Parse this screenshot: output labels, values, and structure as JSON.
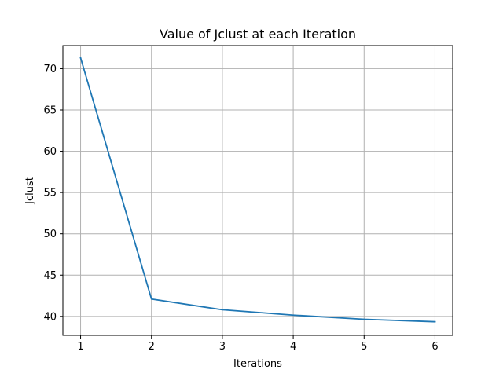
{
  "chart_data": {
    "type": "line",
    "title": "Value of Jclust at each Iteration",
    "xlabel": "Iterations",
    "ylabel": "Jclust",
    "x": [
      1,
      2,
      3,
      4,
      5,
      6
    ],
    "series": [
      {
        "values": [
          71.3,
          42.1,
          40.8,
          40.15,
          39.65,
          39.35
        ],
        "color": "#1f77b4"
      }
    ],
    "xlim": [
      0.75,
      6.25
    ],
    "ylim": [
      37.7,
      72.8
    ],
    "xticks": [
      1,
      2,
      3,
      4,
      5,
      6
    ],
    "yticks": [
      40,
      45,
      50,
      55,
      60,
      65,
      70
    ],
    "grid": true
  }
}
